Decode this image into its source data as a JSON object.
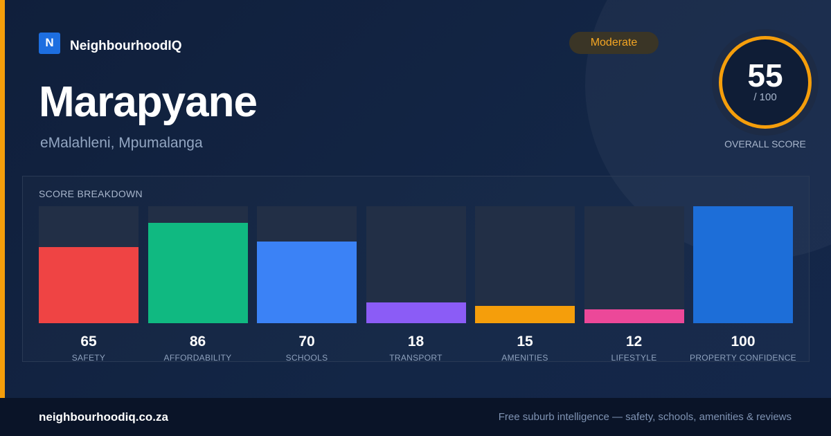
{
  "brand": {
    "logo_letter": "N",
    "name": "NeighbourhoodIQ"
  },
  "suburb": {
    "name": "Marapyane",
    "location": "eMalahleni, Mpumalanga"
  },
  "badge": {
    "label": "Moderate",
    "color": "#f5a623"
  },
  "overall": {
    "score": "55",
    "max": "/ 100",
    "label": "OVERALL SCORE",
    "ring_color": "#f59e0b"
  },
  "breakdown": {
    "title": "SCORE BREAKDOWN",
    "items": [
      {
        "label": "SAFETY",
        "value": 65,
        "color": "#ef4444"
      },
      {
        "label": "AFFORDABILITY",
        "value": 86,
        "color": "#10b981"
      },
      {
        "label": "SCHOOLS",
        "value": 70,
        "color": "#3b82f6"
      },
      {
        "label": "TRANSPORT",
        "value": 18,
        "color": "#8b5cf6"
      },
      {
        "label": "AMENITIES",
        "value": 15,
        "color": "#f59e0b"
      },
      {
        "label": "LIFESTYLE",
        "value": 12,
        "color": "#ec4899"
      },
      {
        "label": "PROPERTY CONFIDENCE",
        "value": 100,
        "color": "#1d6ed8"
      }
    ]
  },
  "footer": {
    "url": "neighbourhoodiq.co.za",
    "tagline": "Free suburb intelligence — safety, schools, amenities & reviews"
  },
  "chart_data": {
    "type": "bar",
    "categories": [
      "SAFETY",
      "AFFORDABILITY",
      "SCHOOLS",
      "TRANSPORT",
      "AMENITIES",
      "LIFESTYLE",
      "PROPERTY CONFIDENCE"
    ],
    "values": [
      65,
      86,
      70,
      18,
      15,
      12,
      100
    ],
    "title": "SCORE BREAKDOWN",
    "ylim": [
      0,
      100
    ]
  }
}
